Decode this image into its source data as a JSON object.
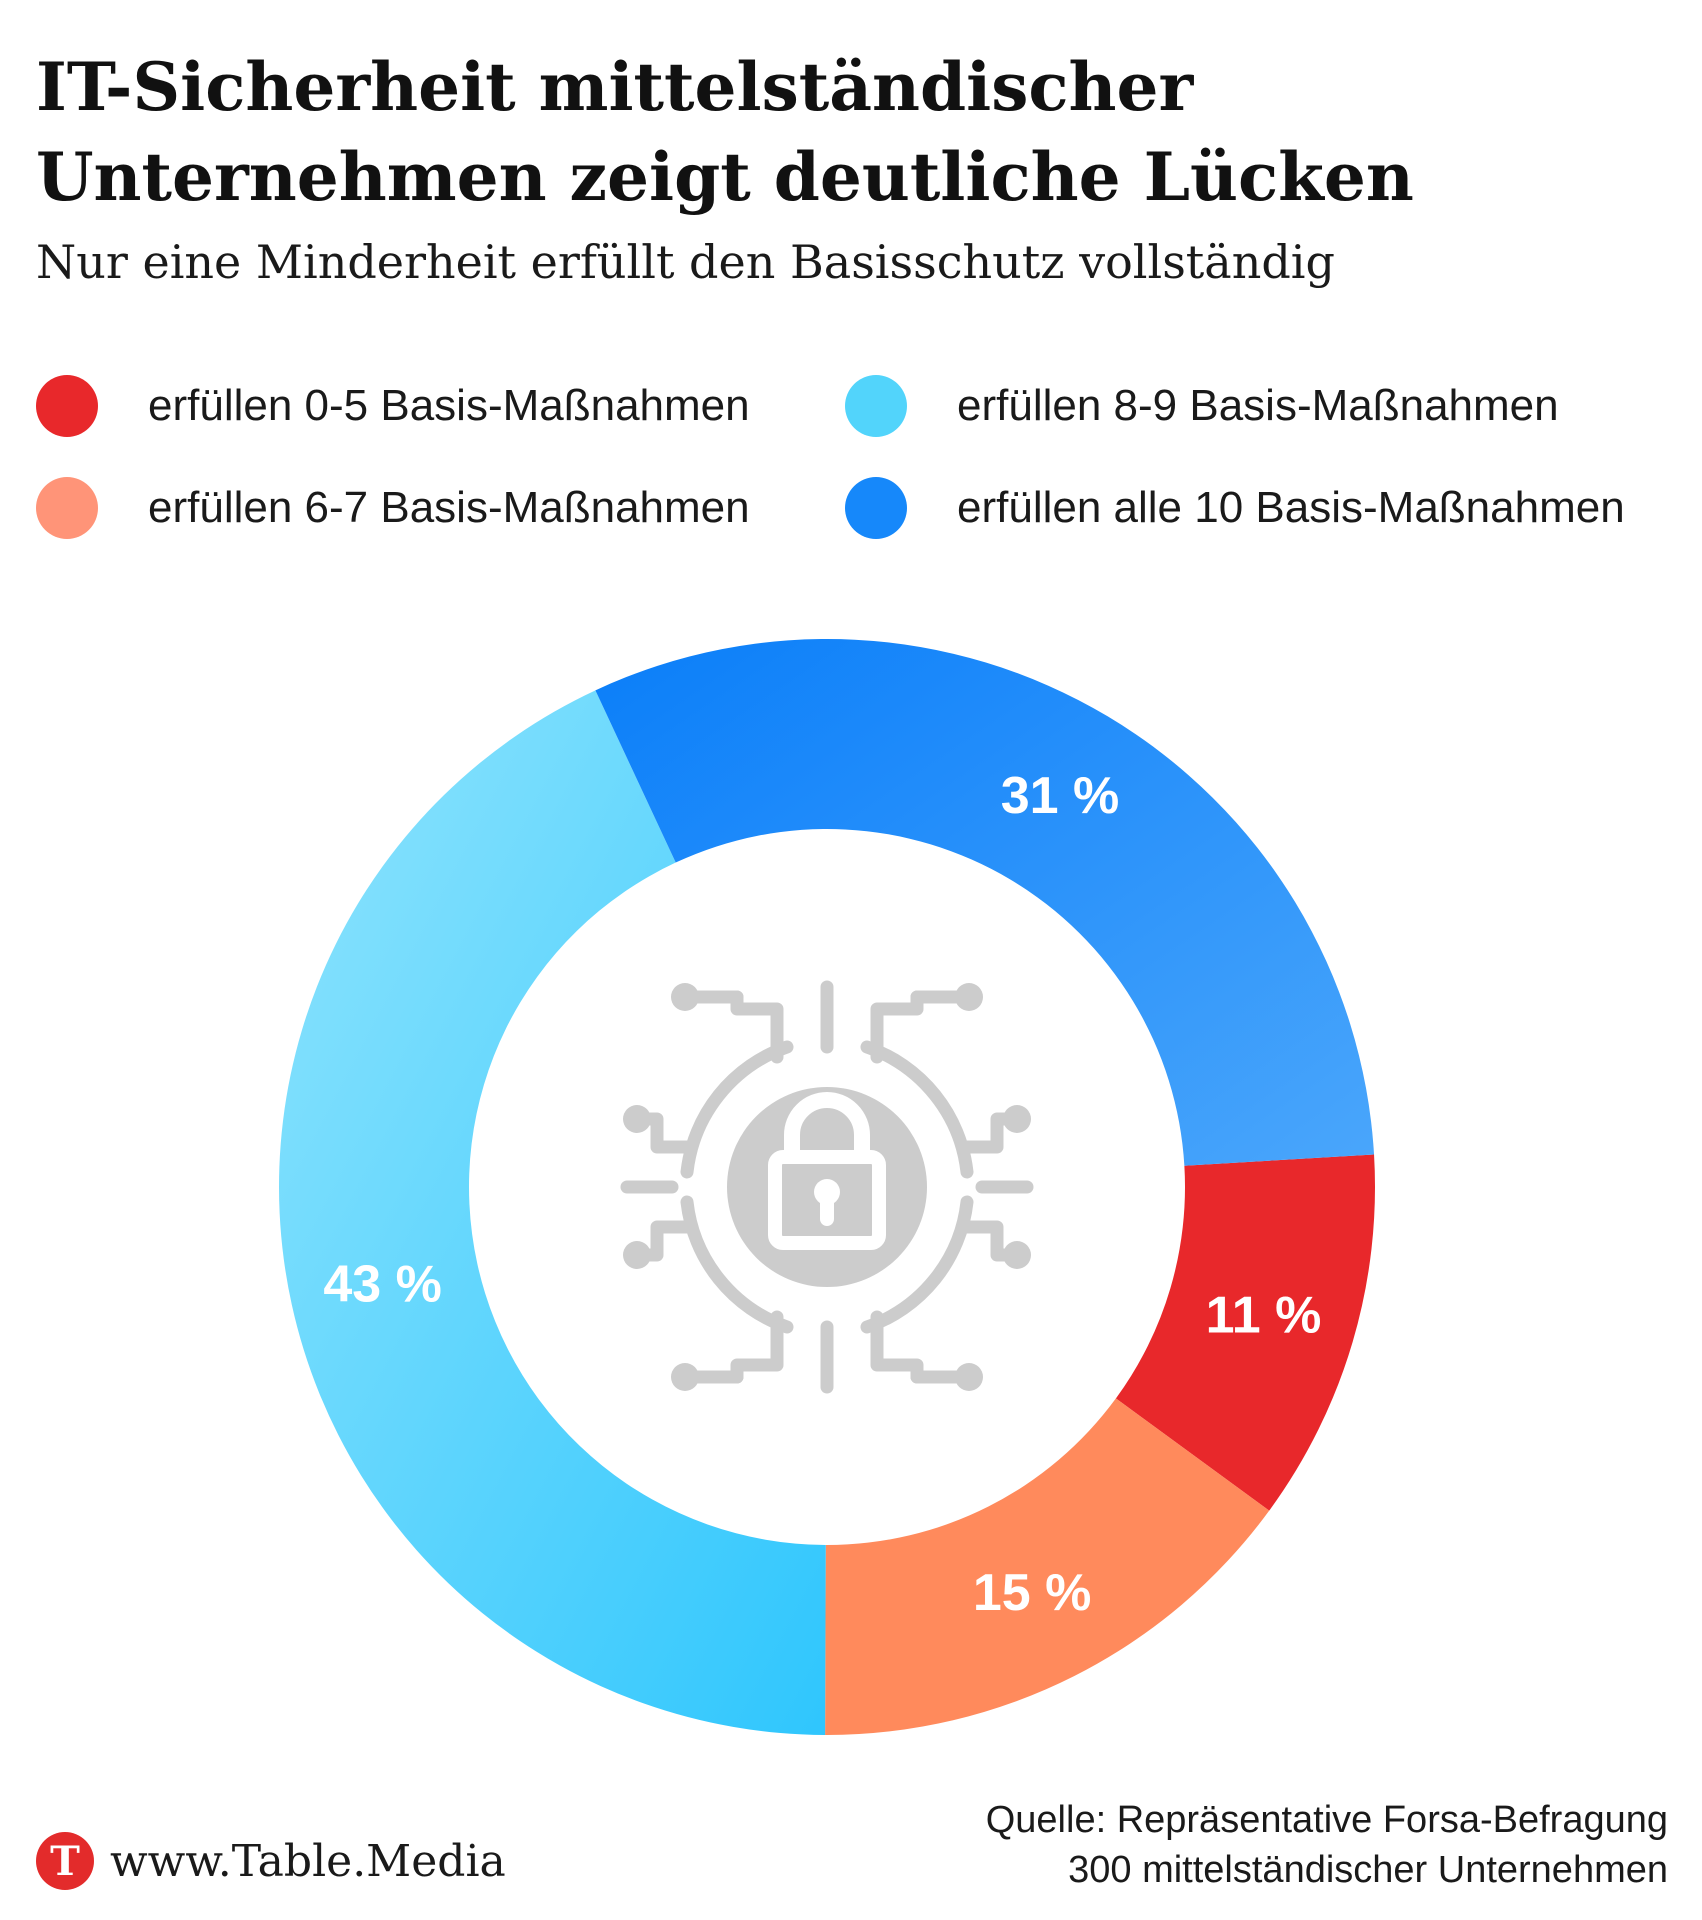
{
  "title": "IT-Sicherheit mittelständischer Unternehmen zeigt deutliche Lücken",
  "subtitle": "Nur eine Minderheit erfüllt den Basisschutz vollständig",
  "legend": [
    {
      "label": "erfüllen 0-5 Basis-Maßnahmen",
      "color": "#e8282b"
    },
    {
      "label": "erfüllen 6-7 Basis-Maßnahmen",
      "color": "#ff9478"
    },
    {
      "label": "erfüllen 8-9 Basis-Maßnahmen",
      "color": "#52d4fb"
    },
    {
      "label": "erfüllen alle 10 Basis-Maßnahmen",
      "color": "#1688fa"
    }
  ],
  "chart_data": {
    "type": "pie",
    "variant": "donut",
    "title": "IT-Sicherheit mittelständischer Unternehmen zeigt deutliche Lücken",
    "subtitle": "Nur eine Minderheit erfüllt den Basisschutz vollständig",
    "legend_position": "top",
    "slices": [
      {
        "name": "erfüllen 0-5 Basis-Maßnahmen",
        "value": 11,
        "label": "11 %",
        "color": "#e8282b"
      },
      {
        "name": "erfüllen 6-7 Basis-Maßnahmen",
        "value": 15,
        "label": "15 %",
        "color": "#ff8a5c"
      },
      {
        "name": "erfüllen 8-9 Basis-Maßnahmen",
        "value": 43,
        "label": "43 %",
        "color": "#45d0fc"
      },
      {
        "name": "erfüllen alle 10 Basis-Maßnahmen",
        "value": 31,
        "label": "31 %",
        "color": "#2f95fb"
      }
    ],
    "center_icon": "circuit-lock-icon"
  },
  "footer": {
    "logo_letter": "T",
    "site": "www.Table.Media",
    "source_line1": "Quelle: Repräsentative Forsa-Befragung",
    "source_line2": "300 mittelständischer Unternehmen"
  }
}
